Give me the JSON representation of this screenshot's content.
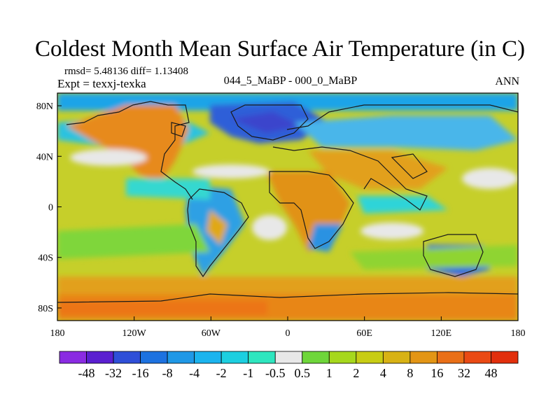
{
  "title": "Coldest Month Mean Surface Air Temperature (in C)",
  "stats": {
    "text": "rmsd= 5.48136 diff= 1.13408"
  },
  "experiment": {
    "text": "Expt = texxj-texka"
  },
  "comparison": {
    "text": "044_5_MaBP - 000_0_MaBP"
  },
  "season": {
    "text": "ANN"
  },
  "map": {
    "lat_ticks": [
      {
        "lat": 80,
        "label": "80N"
      },
      {
        "lat": 40,
        "label": "40N"
      },
      {
        "lat": 0,
        "label": "0"
      },
      {
        "lat": -40,
        "label": "40S"
      },
      {
        "lat": -80,
        "label": "80S"
      }
    ],
    "lon_ticks": [
      {
        "lon": -180,
        "label": "180"
      },
      {
        "lon": -120,
        "label": "120W"
      },
      {
        "lon": -60,
        "label": "60W"
      },
      {
        "lon": 0,
        "label": "0"
      },
      {
        "lon": 60,
        "label": "60E"
      },
      {
        "lon": 120,
        "label": "120E"
      },
      {
        "lon": 180,
        "label": "180"
      }
    ]
  },
  "colorbar": {
    "colors": [
      "#8a2be2",
      "#5a1fd0",
      "#2f4fd8",
      "#1d72e0",
      "#1f98e6",
      "#1bb4ee",
      "#1ccfe0",
      "#2ee6bf",
      "#e8e8e8",
      "#6ed63a",
      "#a6d81c",
      "#c8cd14",
      "#d8b214",
      "#e39515",
      "#e96f17",
      "#ea4a14",
      "#e22f0c"
    ],
    "labels": [
      "-48",
      "-32",
      "-16",
      "-8",
      "-4",
      "-2",
      "-1",
      "-0.5",
      "0.5",
      "1",
      "2",
      "4",
      "8",
      "16",
      "32",
      "48"
    ]
  }
}
